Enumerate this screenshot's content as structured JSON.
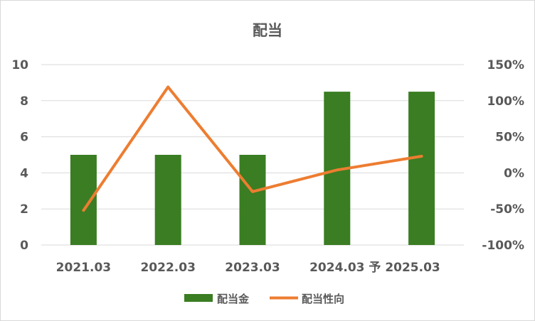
{
  "chart_data": {
    "type": "bar",
    "title": "配当",
    "categories": [
      "2021.03",
      "2022.03",
      "2023.03",
      "2024.03",
      "予 2025.03"
    ],
    "series": [
      {
        "name": "配当金",
        "type": "bar",
        "axis": "left",
        "color": "#3a7d22",
        "values": [
          5,
          5,
          5,
          8.5,
          8.5
        ]
      },
      {
        "name": "配当性向",
        "type": "line",
        "axis": "right",
        "color": "#ed7d31",
        "values": [
          -0.52,
          1.19,
          -0.26,
          0.04,
          0.23
        ]
      }
    ],
    "y_left": {
      "min": 0,
      "max": 10,
      "ticks": [
        "0",
        "2",
        "4",
        "6",
        "8",
        "10"
      ]
    },
    "y_right": {
      "min": -1.0,
      "max": 1.5,
      "ticks": [
        "-100%",
        "-50%",
        "0%",
        "50%",
        "100%",
        "150%"
      ]
    },
    "grid": true,
    "legend_position": "bottom"
  }
}
